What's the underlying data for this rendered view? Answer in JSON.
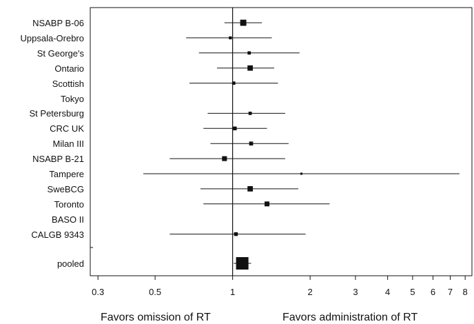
{
  "chart_data": {
    "type": "forest",
    "x_scale": "log",
    "xlim": [
      0.28,
      8.5
    ],
    "x_ticks": [
      0.3,
      0.5,
      1,
      2,
      3,
      4,
      5,
      6,
      7,
      8
    ],
    "reference_line": 1,
    "captions": {
      "left": "Favors omission of RT",
      "right": "Favors administration of RT"
    },
    "studies": [
      {
        "label": "NSABP B-06",
        "est": 1.1,
        "lo": 0.93,
        "hi": 1.3,
        "weight": 3.0
      },
      {
        "label": "Uppsala-Orebro",
        "est": 0.98,
        "lo": 0.66,
        "hi": 1.42,
        "weight": 1.0
      },
      {
        "label": "St George's",
        "est": 1.16,
        "lo": 0.74,
        "hi": 1.82,
        "weight": 1.2
      },
      {
        "label": "Ontario",
        "est": 1.17,
        "lo": 0.87,
        "hi": 1.45,
        "weight": 2.5
      },
      {
        "label": "Scottish",
        "est": 1.01,
        "lo": 0.68,
        "hi": 1.5,
        "weight": 1.2
      },
      {
        "label": "Tokyo",
        "est": null,
        "lo": null,
        "hi": null,
        "weight": 0
      },
      {
        "label": "St Petersburg",
        "est": 1.17,
        "lo": 0.8,
        "hi": 1.6,
        "weight": 1.2
      },
      {
        "label": "CRC UK",
        "est": 1.02,
        "lo": 0.77,
        "hi": 1.36,
        "weight": 1.5
      },
      {
        "label": "Milan III",
        "est": 1.18,
        "lo": 0.82,
        "hi": 1.65,
        "weight": 1.6
      },
      {
        "label": "NSABP B-21",
        "est": 0.93,
        "lo": 0.57,
        "hi": 1.6,
        "weight": 2.2
      },
      {
        "label": "Tampere",
        "est": 1.85,
        "lo": 0.45,
        "hi": 7.6,
        "weight": 0.5
      },
      {
        "label": "SweBCG",
        "est": 1.17,
        "lo": 0.75,
        "hi": 1.8,
        "weight": 2.5
      },
      {
        "label": "Toronto",
        "est": 1.36,
        "lo": 0.77,
        "hi": 2.38,
        "weight": 2.2
      },
      {
        "label": "BASO II",
        "est": null,
        "lo": null,
        "hi": null,
        "weight": 0
      },
      {
        "label": "CALGB 9343",
        "est": 1.03,
        "lo": 0.57,
        "hi": 1.92,
        "weight": 1.5
      }
    ],
    "pooled": {
      "label": "pooled",
      "est": 1.09,
      "lo": 1.01,
      "hi": 1.18
    }
  }
}
